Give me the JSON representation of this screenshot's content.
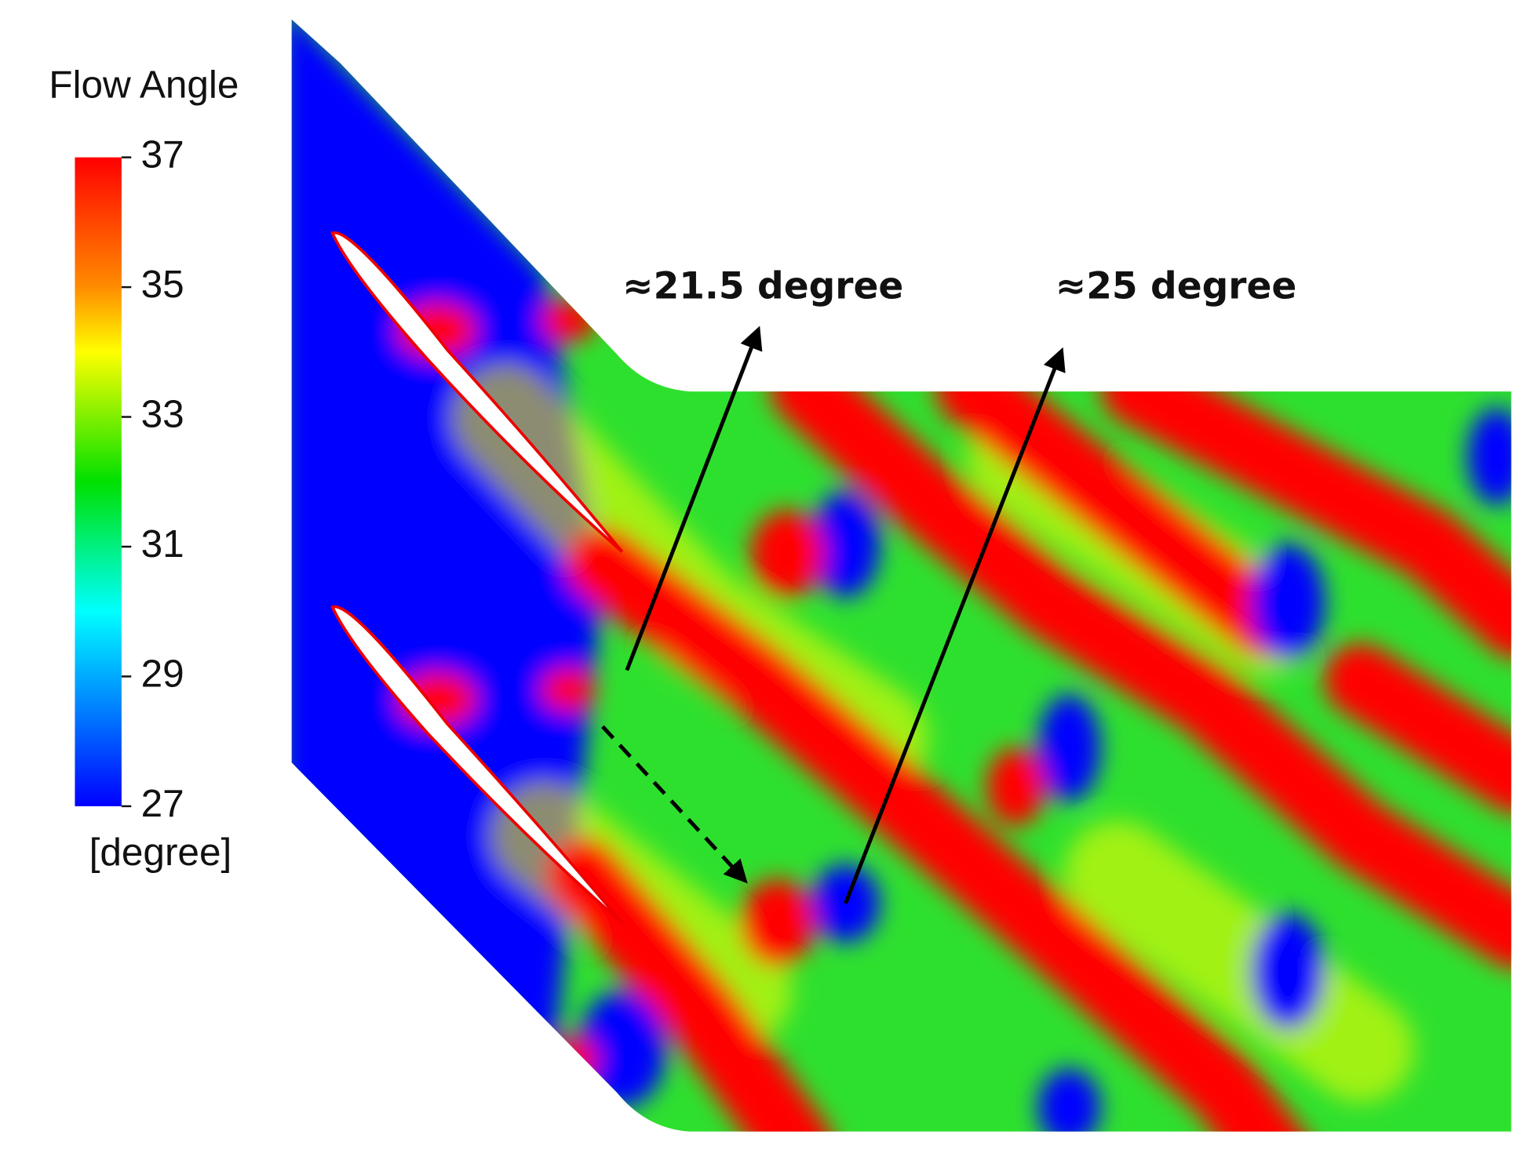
{
  "colorbar": {
    "title": "Flow Angle",
    "ticks": [
      37,
      35,
      33,
      31,
      29,
      27
    ],
    "unit": "[degree]"
  },
  "annotations": [
    "≈21.5 degree",
    "≈25 degree"
  ]
}
